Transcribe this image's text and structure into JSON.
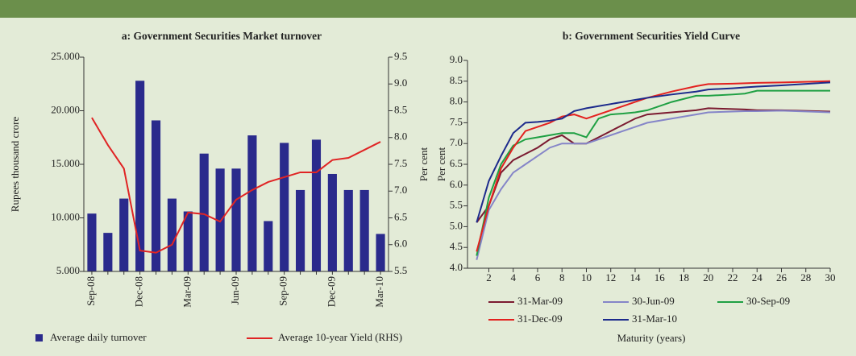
{
  "chart_data": [
    {
      "type": "bar",
      "title": "a: Government Securities Market turnover",
      "ylabel": "Rupees thousand crore",
      "y2label": "Per cent",
      "categories": [
        "Sep-08",
        null,
        null,
        "Dec-08",
        null,
        null,
        "Mar-09",
        null,
        null,
        "Jun-09",
        null,
        null,
        "Sep-09",
        null,
        null,
        "Dec-09",
        null,
        null,
        "Mar-10"
      ],
      "series": [
        {
          "name": "Average daily turnover",
          "color": "#2a2a8c",
          "values": [
            10.4,
            8.6,
            11.8,
            22.8,
            19.1,
            11.8,
            10.6,
            16.0,
            14.6,
            14.6,
            17.7,
            9.7,
            17.0,
            12.6,
            17.3,
            14.1,
            12.6,
            12.6,
            8.5
          ]
        },
        {
          "name": "Average 10-year Yield (RHS)",
          "color": "#e02424",
          "type": "line",
          "axis": "y2",
          "values": [
            8.37,
            7.86,
            7.42,
            5.89,
            5.85,
            6.0,
            6.6,
            6.57,
            6.43,
            6.84,
            7.02,
            7.17,
            7.26,
            7.35,
            7.35,
            7.58,
            7.62,
            7.77,
            7.92
          ]
        }
      ],
      "ylim": [
        5,
        25
      ],
      "yticks": [
        {
          "value": 5,
          "label": "5.000"
        },
        {
          "value": 10,
          "label": "10.000"
        },
        {
          "value": 15,
          "label": "15.000"
        },
        {
          "value": 20,
          "label": "20.000"
        },
        {
          "value": 25,
          "label": "25.000"
        }
      ],
      "y2lim": [
        5.5,
        9.5
      ],
      "y2ticks": [
        5.5,
        {
          "value": 6,
          "label": "6.0"
        },
        6.5,
        {
          "value": 7,
          "label": "7.0"
        },
        7.5,
        {
          "value": 8,
          "label": "8.0"
        },
        8.5,
        {
          "value": 9,
          "label": "9.0"
        },
        9.5
      ]
    },
    {
      "type": "line",
      "title": "b: Government Securities Yield Curve",
      "ylabel": "Per cent",
      "xlabel": "Maturity (years)",
      "x": [
        1,
        2,
        3,
        4,
        5,
        6,
        7,
        8,
        9,
        10,
        11,
        12,
        13,
        14,
        15,
        17,
        19,
        20,
        22,
        23,
        24,
        26,
        30
      ],
      "series": [
        {
          "name": "31-Mar-09",
          "color": "#7b1a30",
          "values": [
            5.1,
            5.5,
            6.3,
            6.6,
            6.75,
            6.9,
            7.1,
            7.2,
            7.0,
            7.0,
            7.15,
            7.3,
            7.45,
            7.6,
            7.7,
            7.75,
            7.8,
            7.85,
            7.83,
            7.82,
            7.8,
            7.8,
            7.77
          ]
        },
        {
          "name": "30-Jun-09",
          "color": "#8585c8",
          "values": [
            4.2,
            5.4,
            5.9,
            6.3,
            6.5,
            6.7,
            6.9,
            7.0,
            7.0,
            7.0,
            7.1,
            7.2,
            7.3,
            7.4,
            7.5,
            7.6,
            7.7,
            7.75,
            7.77,
            7.78,
            7.78,
            7.79,
            7.75
          ]
        },
        {
          "name": "30-Sep-09",
          "color": "#1fa043",
          "values": [
            4.3,
            5.7,
            6.5,
            6.95,
            7.1,
            7.15,
            7.2,
            7.25,
            7.25,
            7.15,
            7.6,
            7.7,
            7.72,
            7.75,
            7.8,
            8.0,
            8.15,
            8.15,
            8.18,
            8.2,
            8.27,
            8.27,
            8.27
          ]
        },
        {
          "name": "31-Dec-09",
          "color": "#e3211f",
          "values": [
            4.4,
            5.5,
            6.4,
            6.9,
            7.3,
            7.4,
            7.5,
            7.65,
            7.7,
            7.6,
            7.7,
            7.8,
            7.9,
            8.0,
            8.1,
            8.25,
            8.38,
            8.43,
            8.44,
            8.45,
            8.46,
            8.47,
            8.5
          ]
        },
        {
          "name": "31-Mar-10",
          "color": "#1c2a8c",
          "values": [
            5.1,
            6.1,
            6.7,
            7.25,
            7.5,
            7.52,
            7.55,
            7.6,
            7.78,
            7.85,
            7.9,
            7.95,
            8.0,
            8.05,
            8.1,
            8.18,
            8.25,
            8.3,
            8.33,
            8.35,
            8.37,
            8.4,
            8.47
          ]
        }
      ],
      "xlim": [
        0.25,
        30
      ],
      "xticks": [
        2,
        4,
        6,
        8,
        10,
        12,
        14,
        16,
        18,
        20,
        22,
        24,
        26,
        28,
        30
      ],
      "ylim": [
        4,
        9
      ],
      "yticks": [
        {
          "value": 4,
          "label": "4.0"
        },
        4.5,
        {
          "value": 5,
          "label": "5.0"
        },
        5.5,
        {
          "value": 6,
          "label": "6.0"
        },
        6.5,
        {
          "value": 7,
          "label": "7.0"
        },
        7.5,
        {
          "value": 8,
          "label": "8.0"
        },
        8.5,
        {
          "value": 9,
          "label": "9.0"
        }
      ]
    }
  ]
}
